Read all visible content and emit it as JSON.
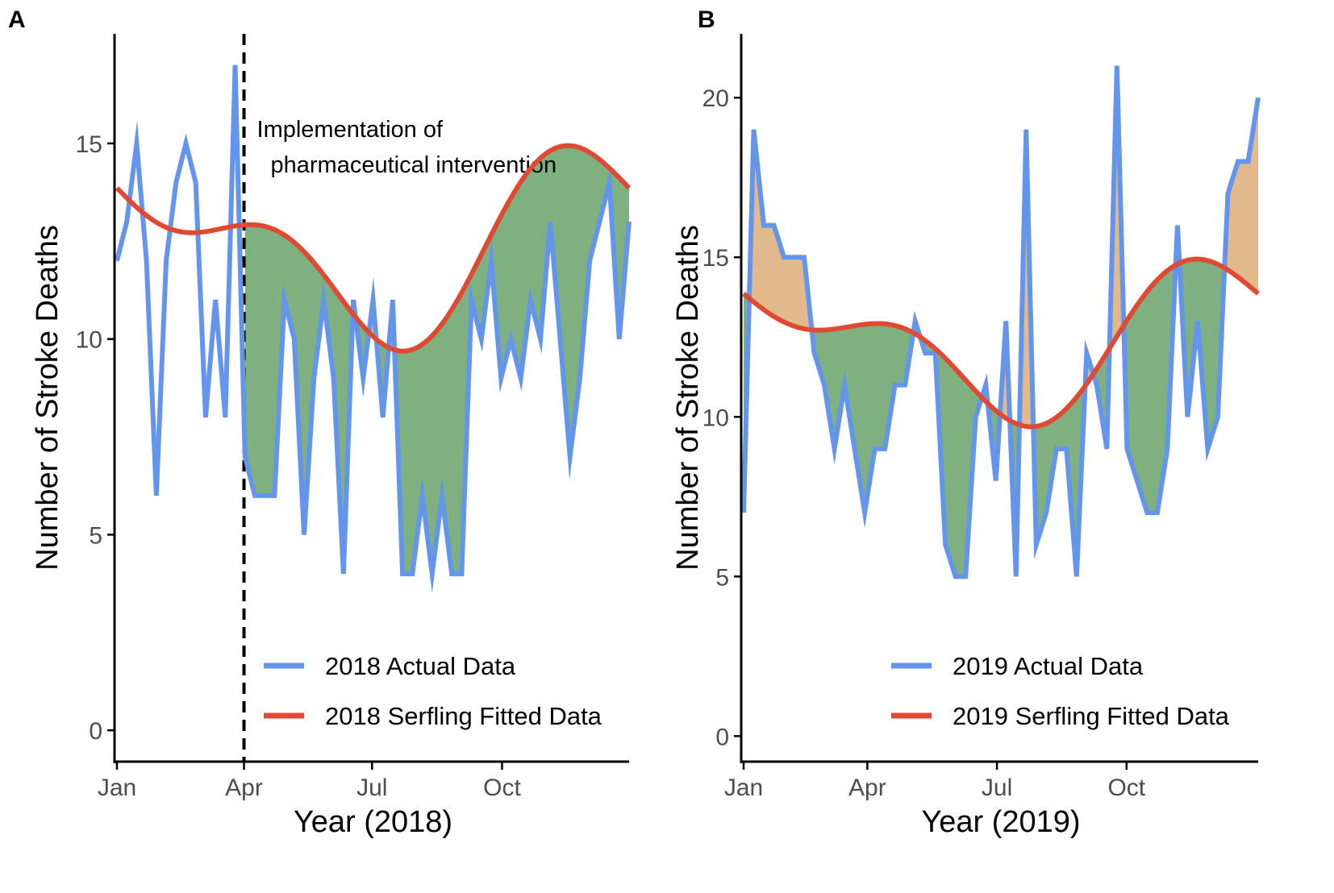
{
  "colors": {
    "actual": "#6495ED",
    "fitted": "#E04A33",
    "below": "#7FB07F",
    "above": "#E2B98C",
    "axis": "#000000",
    "tick_text": "#4d4d4d"
  },
  "chart_data": [
    {
      "panel_label": "A",
      "type": "line",
      "title": "",
      "xlabel": "Year (2018)",
      "ylabel": "Number of Stroke Deaths",
      "xlim_weeks": [
        1,
        53
      ],
      "ylim": [
        -0.8,
        17.8
      ],
      "yticks": [
        0,
        5,
        10,
        15
      ],
      "xticks": [
        {
          "label": "Jan",
          "week": 1
        },
        {
          "label": "Apr",
          "week": 13.9
        },
        {
          "label": "Jul",
          "week": 26.9
        },
        {
          "label": "Oct",
          "week": 40.1
        }
      ],
      "vline": {
        "week": 13.9,
        "style": "dashed",
        "label_lines": [
          "Implementation of",
          "pharmaceutical intervention"
        ]
      },
      "shade_from_week": 14,
      "series": [
        {
          "name": "2018 Actual Data",
          "role": "actual",
          "values": [
            12,
            13,
            15,
            12,
            6,
            12,
            14,
            15,
            14,
            8,
            11,
            8,
            17,
            7,
            6,
            6,
            6,
            11,
            10,
            5,
            9,
            11,
            9,
            4,
            11,
            9,
            11,
            8,
            11,
            4,
            4,
            6,
            4,
            6,
            4,
            4,
            11,
            10,
            12,
            9,
            10,
            9,
            11,
            10,
            13,
            10,
            7,
            9,
            12,
            13,
            14,
            10,
            13
          ]
        },
        {
          "name": "2018 Serfling Fitted Data",
          "role": "fitted",
          "mean": 12.5,
          "amplitude_annual": 1.9,
          "phase_annual_weeks": 52.5,
          "amplitude_semiannual": 1.15,
          "phase_semiannual_weeks": 18.5
        }
      ]
    },
    {
      "panel_label": "B",
      "type": "line",
      "title": "",
      "xlabel": "Year (2019)",
      "ylabel": "Number of Stroke Deaths",
      "xlim_weeks": [
        1,
        53
      ],
      "ylim": [
        -0.8,
        22.0
      ],
      "yticks": [
        0,
        5,
        10,
        15,
        20
      ],
      "xticks": [
        {
          "label": "Jan",
          "week": 1
        },
        {
          "label": "Apr",
          "week": 13.5
        },
        {
          "label": "Jul",
          "week": 26.6
        },
        {
          "label": "Oct",
          "week": 39.7
        }
      ],
      "shade_from_week": 1,
      "series": [
        {
          "name": "2019 Actual Data",
          "role": "actual",
          "values": [
            7,
            19,
            16,
            16,
            15,
            15,
            15,
            12,
            11,
            9,
            11,
            9,
            7,
            9,
            9,
            11,
            11,
            13,
            12,
            12,
            6,
            5,
            5,
            10,
            11,
            8,
            13,
            5,
            19,
            6,
            7,
            9,
            9,
            5,
            12,
            11,
            9,
            21,
            9,
            8,
            7,
            7,
            9,
            16,
            10,
            13,
            9,
            10,
            17,
            18,
            18,
            20
          ]
        },
        {
          "name": "2019 Serfling Fitted Data",
          "role": "fitted",
          "mean": 12.5,
          "amplitude_annual": 1.9,
          "phase_annual_weeks": 52.5,
          "amplitude_semiannual": 1.15,
          "phase_semiannual_weeks": 18.5
        }
      ]
    }
  ]
}
